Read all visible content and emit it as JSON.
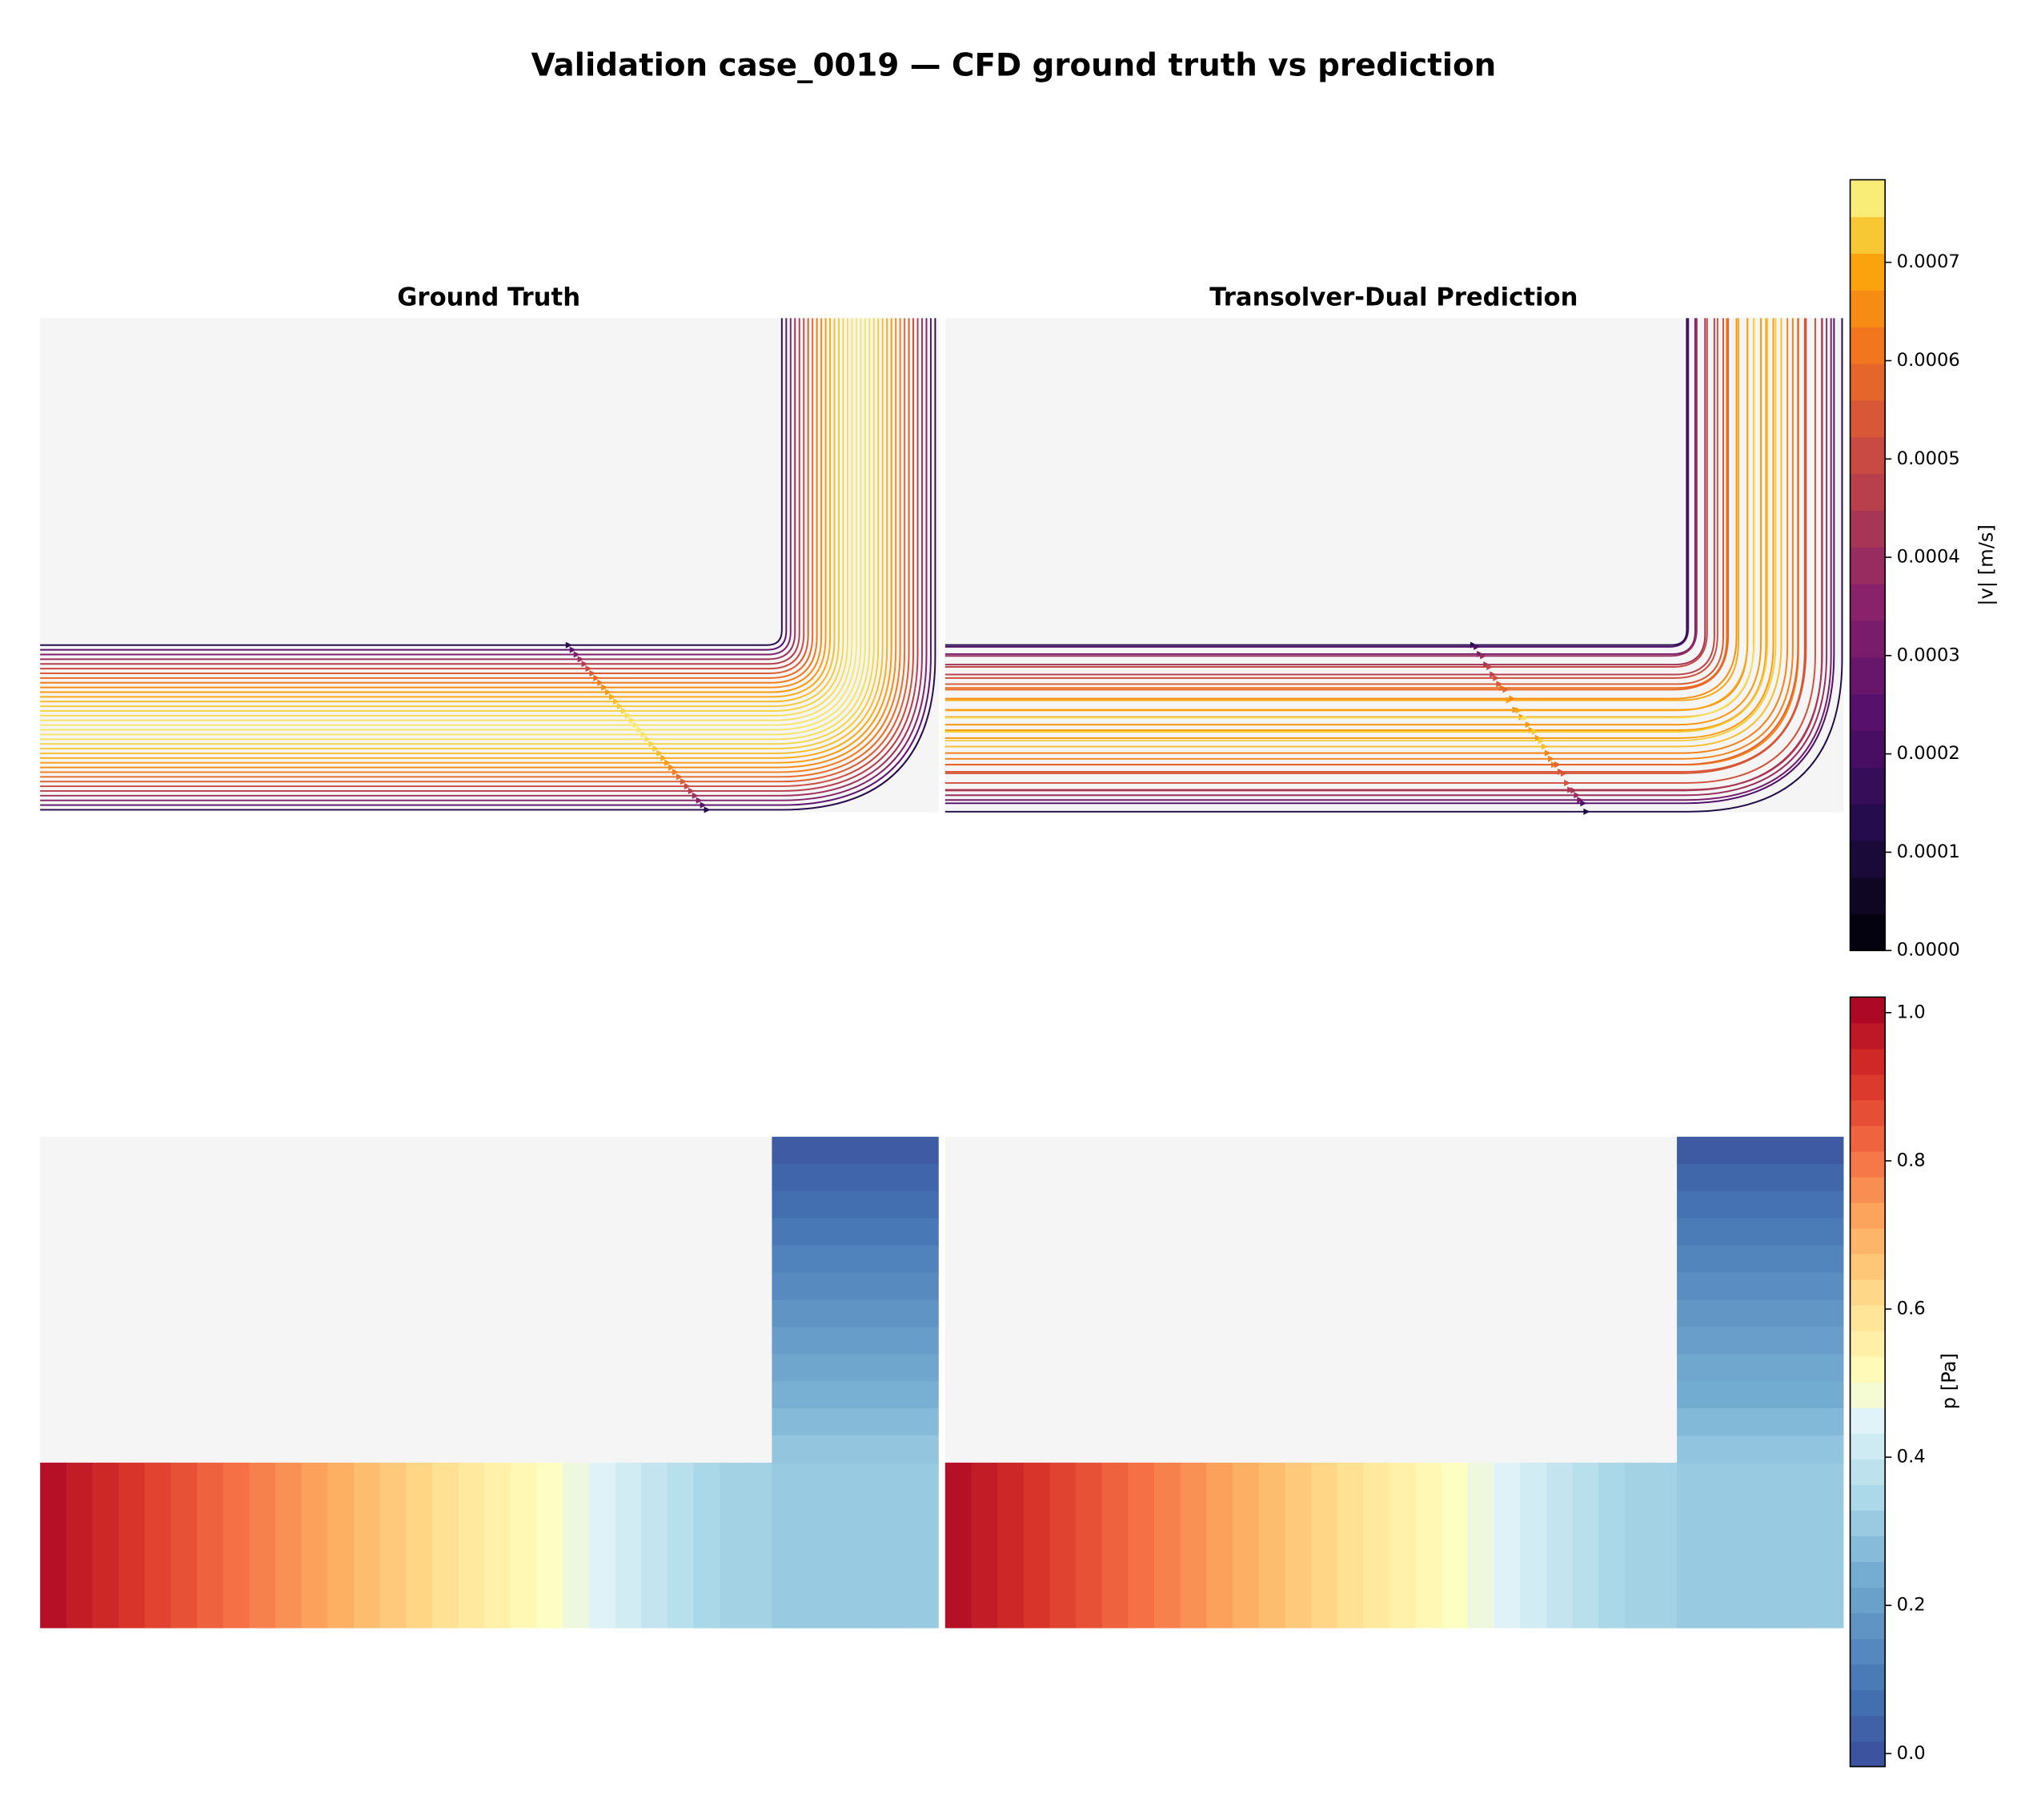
{
  "title": "Validation case_0019 — CFD ground truth vs prediction",
  "panels": [
    {
      "title": "Ground Truth"
    },
    {
      "title": "Transolver-Dual Prediction"
    }
  ],
  "colorbars": [
    {
      "label": "|v| [m/s]",
      "lim": [
        0,
        0.000784
      ],
      "ticks": [
        {
          "value": 0,
          "label": "0.0000"
        },
        0.0001,
        0.0002,
        0.0003,
        0.0004,
        0.0005,
        0.0006,
        0.0007
      ]
    },
    {
      "label": "p [Pa]",
      "lim": [
        -0.0175,
        1.021
      ],
      "ticks": [
        {
          "value": 0,
          "label": "0.0"
        },
        0.2,
        0.4,
        0.6,
        0.8,
        {
          "value": 1,
          "label": "1.0"
        }
      ]
    }
  ]
}
